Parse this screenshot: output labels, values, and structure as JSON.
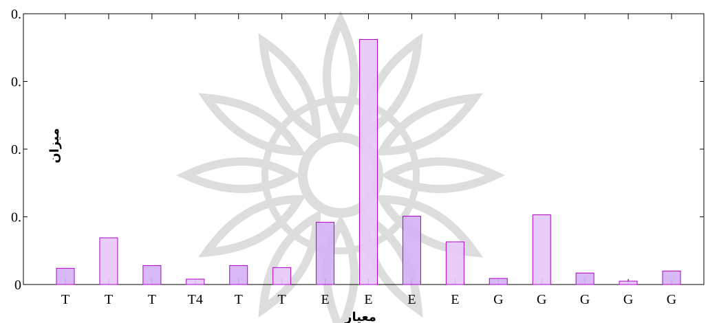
{
  "chart_data": {
    "type": "bar",
    "xlabel": "معیار",
    "ylabel": "میزان",
    "categories": [
      "T",
      "T",
      "T",
      "T4",
      "T",
      "T",
      "E",
      "E",
      "E",
      "E",
      "G",
      "G",
      "G",
      "G",
      "G"
    ],
    "values": [
      0.024,
      0.069,
      0.028,
      0.008,
      0.028,
      0.025,
      0.092,
      0.362,
      0.101,
      0.063,
      0.009,
      0.103,
      0.017,
      0.005,
      0.02
    ],
    "y_tick_labels": [
      "0",
      "0.",
      "0.",
      "0.",
      "0."
    ],
    "ylim": [
      0,
      0.4
    ],
    "grid": false,
    "colors": {
      "bar_fill": [
        "#d4b0f5",
        "#e6c8fb"
      ],
      "bar_stroke": "#b000c8",
      "axis": "#000000",
      "watermark": "#bcbcbc"
    }
  }
}
